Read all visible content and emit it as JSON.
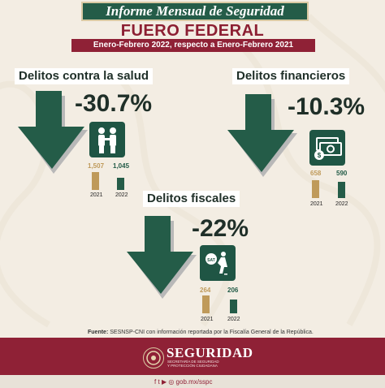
{
  "header": {
    "banner_title": "Informe Mensual de Seguridad",
    "title": "FUERO FEDERAL",
    "period": "Enero-Febrero 2022, respecto a Enero-Febrero 2021"
  },
  "categories": [
    {
      "title": "Delitos contra la salud",
      "change": "-30.7%",
      "icon": "people-icon",
      "bars": [
        {
          "year": "2021",
          "value": 1507,
          "label": "1,507"
        },
        {
          "year": "2022",
          "value": 1045,
          "label": "1,045"
        }
      ]
    },
    {
      "title": "Delitos financieros",
      "change": "-10.3%",
      "icon": "money-icon",
      "bars": [
        {
          "year": "2021",
          "value": 658,
          "label": "658"
        },
        {
          "year": "2022",
          "value": 590,
          "label": "590"
        }
      ]
    },
    {
      "title": "Delitos fiscales",
      "change": "-22%",
      "icon": "tax-burden-icon",
      "bars": [
        {
          "year": "2021",
          "value": 264,
          "label": "264"
        },
        {
          "year": "2022",
          "value": 206,
          "label": "206"
        }
      ]
    }
  ],
  "source": {
    "label": "Fuente:",
    "text": "SESNSP-CNI con información reportada por la Fiscalía General de la República."
  },
  "footer": {
    "brand": "SEGURIDAD",
    "sub1": "SECRETARÍA DE SEGURIDAD",
    "sub2": "Y PROTECCIÓN CIUDADANA",
    "url": "gob.mx/sspc"
  },
  "colors": {
    "green": "#245c48",
    "gold": "#bf9a5a",
    "wine": "#8f2136"
  }
}
